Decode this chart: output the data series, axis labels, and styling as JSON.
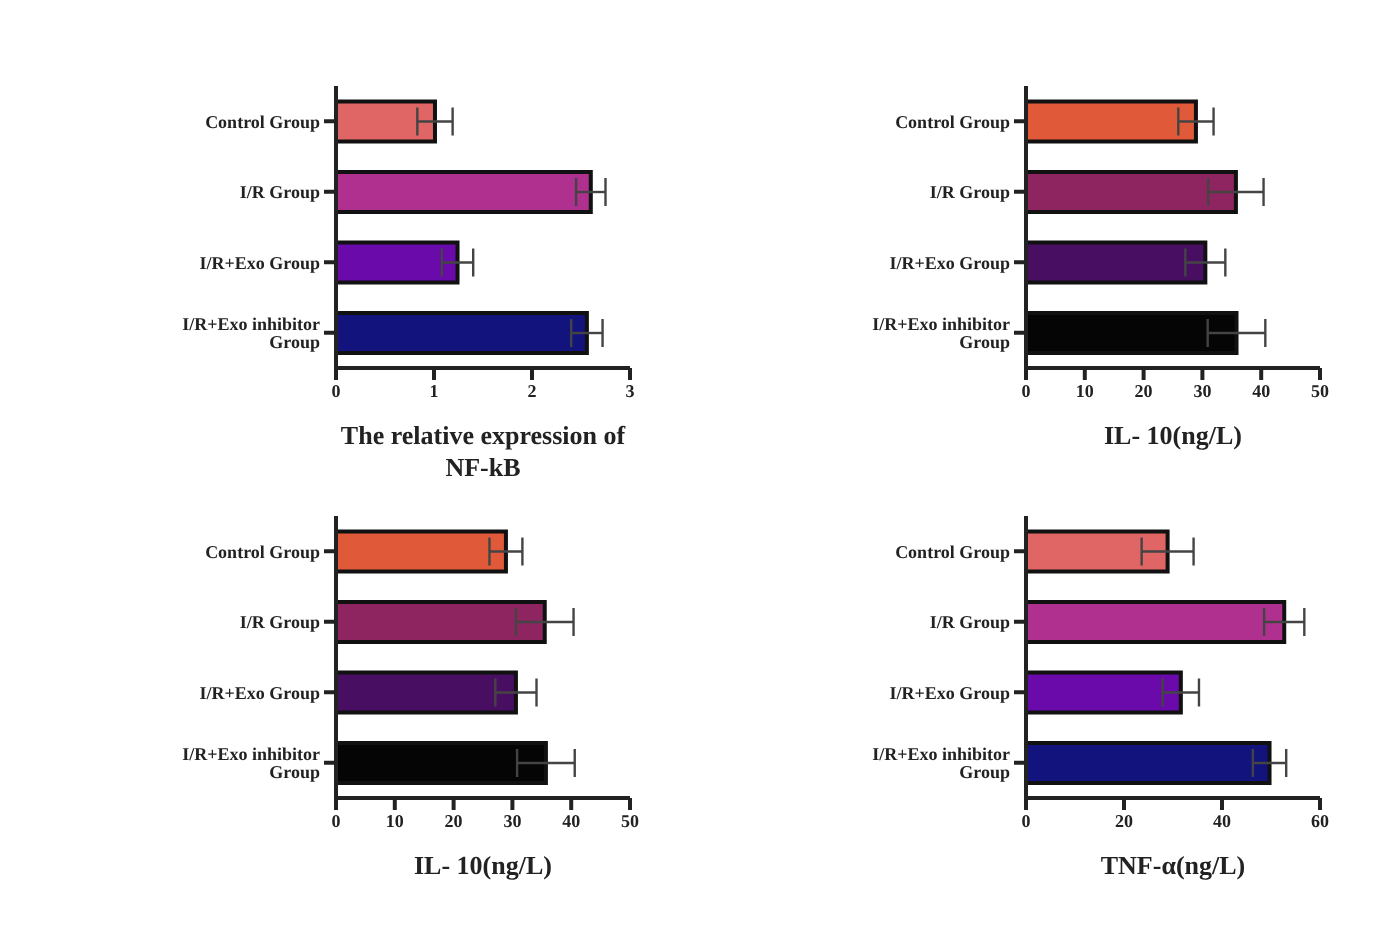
{
  "chart_data": [
    {
      "type": "bar",
      "orientation": "horizontal",
      "xlabel": "The relative expression of NF-kB",
      "categories": [
        "Control Group",
        "I/R Group",
        "I/R+Exo Group",
        "I/R+Exo inhibitor Group"
      ],
      "values": [
        1.01,
        2.6,
        1.24,
        2.56
      ],
      "errors": [
        0.18,
        0.15,
        0.16,
        0.16
      ],
      "colors": [
        "#e06666",
        "#b0308f",
        "#6a0aaa",
        "#13137e"
      ],
      "xlim": [
        0,
        3
      ],
      "xticks": [
        0,
        1,
        2,
        3
      ]
    },
    {
      "type": "bar",
      "orientation": "horizontal",
      "xlabel": "IL- 10(ng/L)",
      "categories": [
        "Control Group",
        "I/R Group",
        "I/R+Exo Group",
        "I/R+Exo inhibitor Group"
      ],
      "values": [
        28.9,
        35.7,
        30.5,
        35.8
      ],
      "errors": [
        3,
        4.7,
        3.4,
        4.9
      ],
      "colors": [
        "#e05a3a",
        "#8e2560",
        "#480e62",
        "#050505"
      ],
      "xlim": [
        0,
        50
      ],
      "xticks": [
        0,
        10,
        20,
        30,
        40,
        50
      ]
    },
    {
      "type": "bar",
      "orientation": "horizontal",
      "xlabel": "IL- 10(ng/L)",
      "categories": [
        "Control Group",
        "I/R Group",
        "I/R+Exo Group",
        "I/R+Exo inhibitor Group"
      ],
      "values": [
        28.9,
        35.5,
        30.6,
        35.7
      ],
      "errors": [
        2.8,
        4.9,
        3.5,
        4.9
      ],
      "colors": [
        "#e05a3a",
        "#8e2560",
        "#480e62",
        "#050505"
      ],
      "xlim": [
        0,
        50
      ],
      "xticks": [
        0,
        10,
        20,
        30,
        40,
        50
      ]
    },
    {
      "type": "bar",
      "orientation": "horizontal",
      "xlabel": "TNF-α(ng/L)",
      "categories": [
        "Control Group",
        "I/R Group",
        "I/R+Exo Group",
        "I/R+Exo inhibitor Group"
      ],
      "values": [
        28.9,
        52.7,
        31.6,
        49.7
      ],
      "errors": [
        5.3,
        4.1,
        3.7,
        3.4
      ],
      "colors": [
        "#e06666",
        "#b0308f",
        "#6a0aaa",
        "#13137e"
      ],
      "xlim": [
        0,
        60
      ],
      "xticks": [
        0,
        20,
        40,
        60
      ]
    }
  ]
}
